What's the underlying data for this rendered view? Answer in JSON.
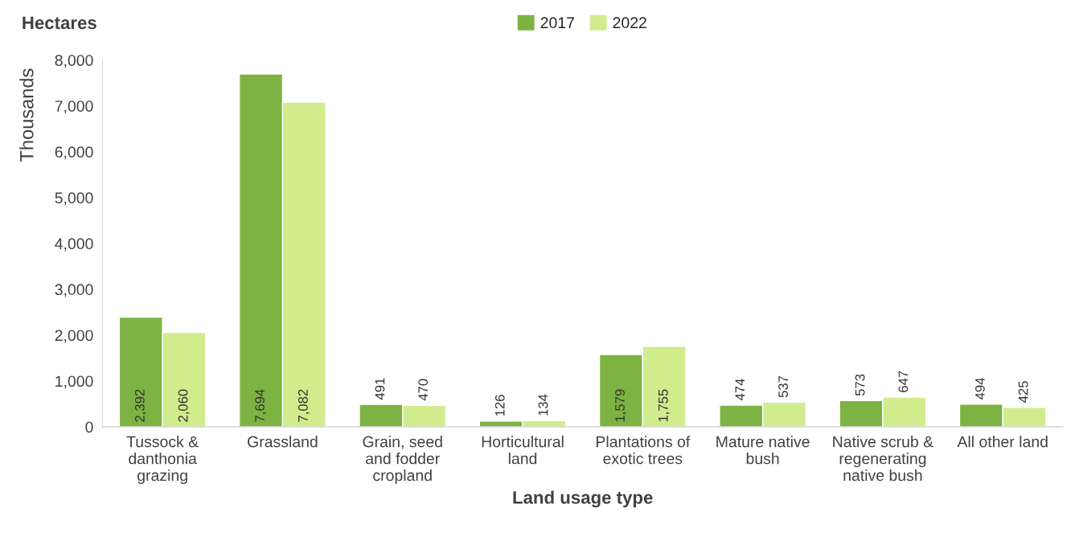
{
  "chart_data": {
    "type": "bar",
    "title": "Hectares",
    "xlabel": "Land usage type",
    "ylabel": "Thousands",
    "categories": [
      "Tussock &\ndanthonia\ngrazing",
      "Grassland",
      "Grain, seed\nand fodder\ncropland",
      "Horticultural\nland",
      "Plantations of\nexotic trees",
      "Mature native\nbush",
      "Native scrub &\nregenerating\nnative bush",
      "All other land"
    ],
    "series": [
      {
        "name": "2017",
        "color": "#7cb342",
        "values": [
          2392,
          7694,
          491,
          126,
          1579,
          474,
          573,
          494
        ],
        "value_labels": [
          "2,392",
          "7,694",
          "491",
          "126",
          "1,579",
          "474",
          "573",
          "494"
        ]
      },
      {
        "name": "2022",
        "color": "#d1ec8c",
        "values": [
          2060,
          7082,
          470,
          134,
          1755,
          537,
          647,
          425
        ],
        "value_labels": [
          "2,060",
          "7,082",
          "470",
          "134",
          "1,755",
          "537",
          "647",
          "425"
        ]
      }
    ],
    "ylim": [
      0,
      8000
    ],
    "yticks": [
      {
        "value": 0,
        "label": "0"
      },
      {
        "value": 1000,
        "label": "1,000"
      },
      {
        "value": 2000,
        "label": "2,000"
      },
      {
        "value": 3000,
        "label": "3,000"
      },
      {
        "value": 4000,
        "label": "4,000"
      },
      {
        "value": 5000,
        "label": "5,000"
      },
      {
        "value": 6000,
        "label": "6,000"
      },
      {
        "value": 7000,
        "label": "7,000"
      },
      {
        "value": 8000,
        "label": "8,000"
      }
    ],
    "legend": "top",
    "grid": false
  }
}
